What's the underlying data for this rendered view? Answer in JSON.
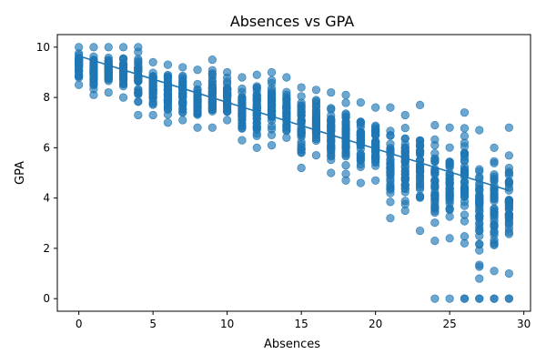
{
  "chart_data": {
    "type": "scatter",
    "title": "Absences vs GPA",
    "xlabel": "Absences",
    "ylabel": "GPA",
    "xlim": [
      -1.45,
      30.45
    ],
    "ylim": [
      -0.5,
      10.5
    ],
    "xticks": [
      "0",
      "5",
      "10",
      "15",
      "20",
      "25",
      "30"
    ],
    "yticks": [
      "0",
      "2",
      "4",
      "6",
      "8",
      "10"
    ],
    "grid": false,
    "legend": "none",
    "colors": {
      "points": "#1f77b4",
      "trend": "#1f77b4"
    },
    "point_opacity": 0.65,
    "trend_line": {
      "x": [
        0,
        29
      ],
      "y": [
        9.65,
        4.3
      ]
    },
    "columns": [
      {
        "x": 0,
        "min": 8.5,
        "max": 10.0
      },
      {
        "x": 1,
        "min": 8.1,
        "max": 10.0
      },
      {
        "x": 2,
        "min": 8.2,
        "max": 10.0
      },
      {
        "x": 3,
        "min": 8.0,
        "max": 10.0
      },
      {
        "x": 4,
        "min": 7.3,
        "max": 10.0
      },
      {
        "x": 5,
        "min": 7.3,
        "max": 9.4
      },
      {
        "x": 6,
        "min": 7.0,
        "max": 9.3
      },
      {
        "x": 7,
        "min": 7.1,
        "max": 9.2
      },
      {
        "x": 8,
        "min": 6.8,
        "max": 9.1
      },
      {
        "x": 9,
        "min": 6.8,
        "max": 9.5
      },
      {
        "x": 10,
        "min": 7.1,
        "max": 9.0
      },
      {
        "x": 11,
        "min": 6.3,
        "max": 8.8
      },
      {
        "x": 12,
        "min": 6.0,
        "max": 8.9
      },
      {
        "x": 13,
        "min": 6.1,
        "max": 9.0
      },
      {
        "x": 14,
        "min": 6.4,
        "max": 8.8
      },
      {
        "x": 15,
        "min": 5.2,
        "max": 8.4
      },
      {
        "x": 16,
        "min": 5.7,
        "max": 8.3
      },
      {
        "x": 17,
        "min": 5.0,
        "max": 8.2
      },
      {
        "x": 18,
        "min": 4.7,
        "max": 8.1
      },
      {
        "x": 19,
        "min": 4.6,
        "max": 7.8
      },
      {
        "x": 20,
        "min": 4.7,
        "max": 7.6
      },
      {
        "x": 21,
        "min": 3.2,
        "max": 7.6
      },
      {
        "x": 22,
        "min": 3.5,
        "max": 7.3
      },
      {
        "x": 23,
        "min": 2.7,
        "max": 7.7
      },
      {
        "x": 24,
        "min": 2.3,
        "max": 6.9
      },
      {
        "x": 25,
        "min": 2.4,
        "max": 6.8
      },
      {
        "x": 26,
        "min": 2.2,
        "max": 7.4
      },
      {
        "x": 27,
        "min": 0.8,
        "max": 6.7
      },
      {
        "x": 28,
        "min": 1.1,
        "max": 6.0
      },
      {
        "x": 29,
        "min": 1.0,
        "max": 6.8
      }
    ],
    "zero_gpa_points": [
      {
        "x": 24,
        "y": 0
      },
      {
        "x": 25,
        "y": 0
      },
      {
        "x": 26,
        "y": 0
      },
      {
        "x": 26,
        "y": 0
      },
      {
        "x": 27,
        "y": 0
      },
      {
        "x": 27,
        "y": 0
      },
      {
        "x": 28,
        "y": 0
      },
      {
        "x": 28,
        "y": 0
      },
      {
        "x": 29,
        "y": 0
      },
      {
        "x": 29,
        "y": 0
      }
    ]
  }
}
